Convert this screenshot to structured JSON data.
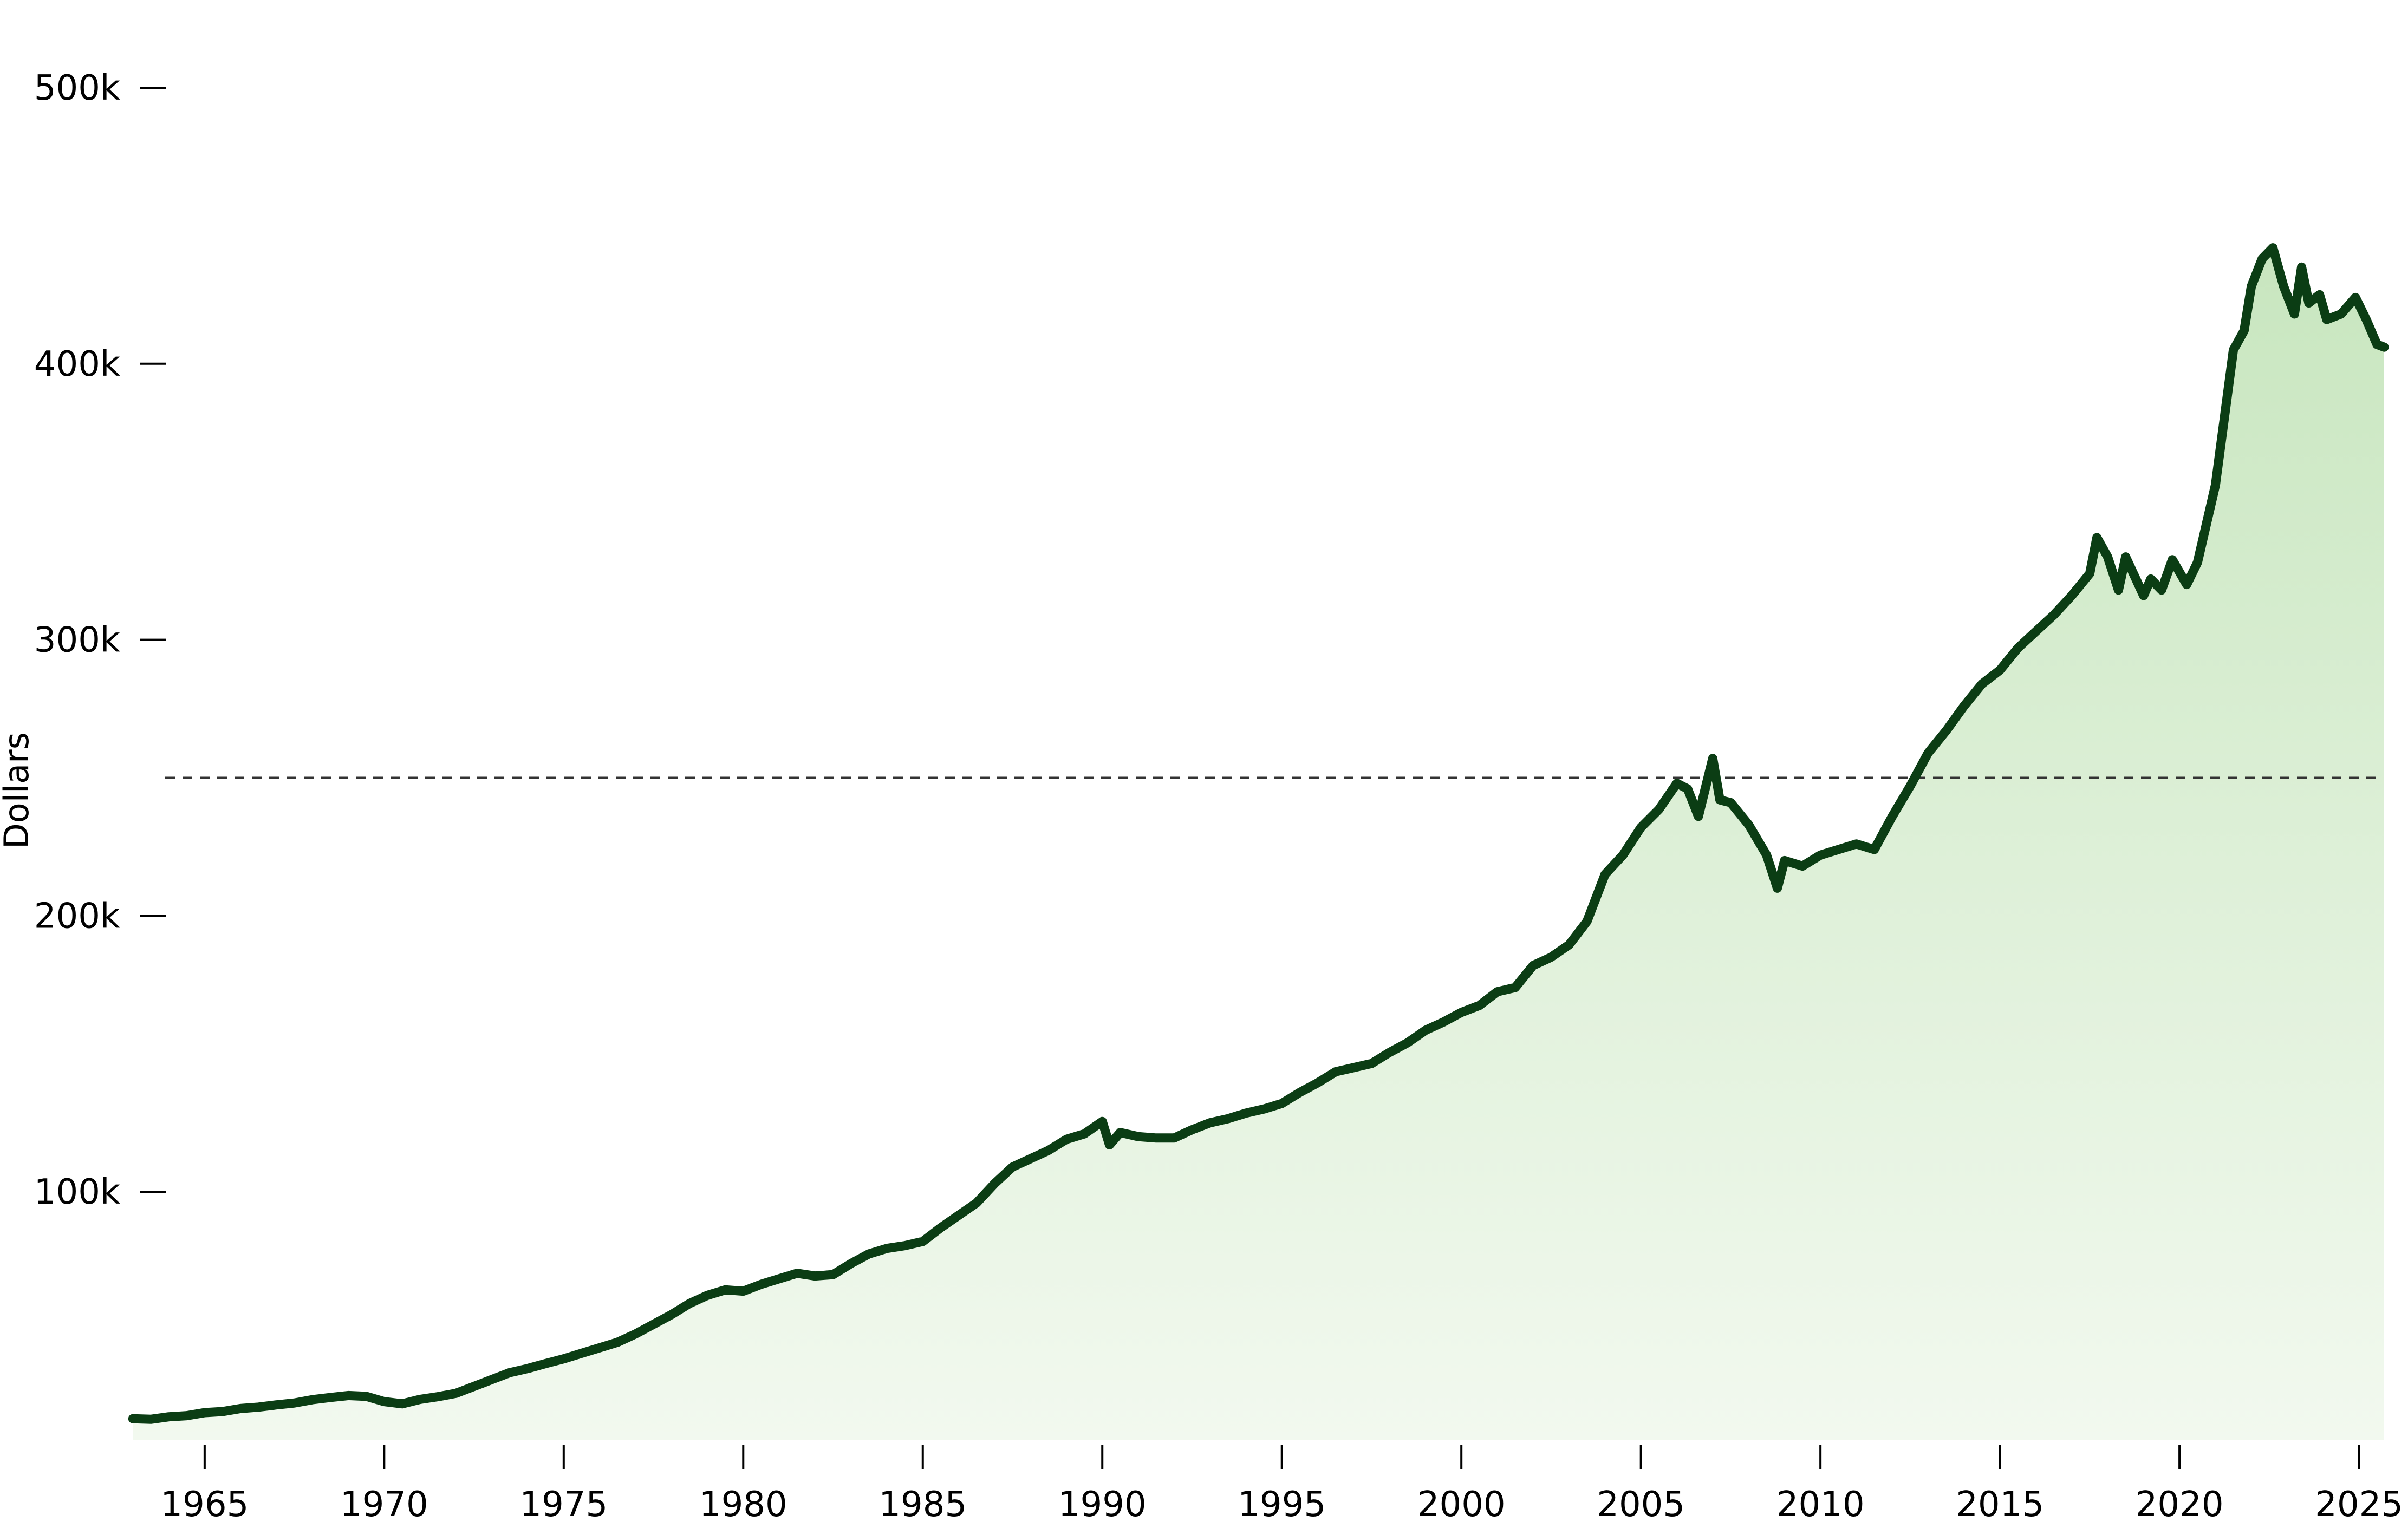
{
  "chart_data": {
    "type": "area",
    "title": "",
    "xlabel": "",
    "ylabel": "Dollars",
    "xlim": [
      1962.8,
      2025.7
    ],
    "ylim": [
      10000,
      520000
    ],
    "x_ticks": [
      1965,
      1970,
      1975,
      1980,
      1985,
      1990,
      1995,
      2000,
      2005,
      2010,
      2015,
      2020,
      2025
    ],
    "x_tick_labels": [
      "1965",
      "1970",
      "1975",
      "1980",
      "1985",
      "1990",
      "1995",
      "2000",
      "2005",
      "2010",
      "2015",
      "2020",
      "2025"
    ],
    "y_ticks": [
      100000,
      200000,
      300000,
      400000,
      500000
    ],
    "y_tick_labels": [
      "100k",
      "200k",
      "300k",
      "400k",
      "500k"
    ],
    "reference_line": {
      "y": 250000,
      "style": "dashed"
    },
    "grid": false,
    "colors": {
      "line": "#0b3d14",
      "fill_top": "#c8e6bf",
      "fill_bottom": "#f2f9ef",
      "reference": "#333333"
    },
    "series": [
      {
        "points": [
          [
            1963.0,
            17800
          ],
          [
            1963.5,
            17600
          ],
          [
            1964.0,
            18500
          ],
          [
            1964.5,
            18900
          ],
          [
            1965.0,
            20000
          ],
          [
            1965.5,
            20400
          ],
          [
            1966.0,
            21500
          ],
          [
            1966.5,
            22000
          ],
          [
            1967.0,
            22800
          ],
          [
            1967.5,
            23500
          ],
          [
            1968.0,
            24700
          ],
          [
            1968.5,
            25500
          ],
          [
            1969.0,
            26200
          ],
          [
            1969.5,
            25900
          ],
          [
            1970.0,
            24000
          ],
          [
            1970.5,
            23200
          ],
          [
            1971.0,
            24800
          ],
          [
            1971.5,
            25800
          ],
          [
            1972.0,
            27000
          ],
          [
            1972.5,
            29500
          ],
          [
            1973.0,
            32000
          ],
          [
            1973.5,
            34500
          ],
          [
            1974.0,
            36000
          ],
          [
            1974.5,
            37800
          ],
          [
            1975.0,
            39500
          ],
          [
            1975.5,
            41500
          ],
          [
            1976.0,
            43500
          ],
          [
            1976.5,
            45500
          ],
          [
            1977.0,
            48500
          ],
          [
            1977.5,
            52000
          ],
          [
            1978.0,
            55500
          ],
          [
            1978.5,
            59500
          ],
          [
            1979.0,
            62500
          ],
          [
            1979.5,
            64500
          ],
          [
            1980.0,
            64000
          ],
          [
            1980.5,
            66500
          ],
          [
            1981.0,
            68500
          ],
          [
            1981.5,
            70500
          ],
          [
            1982.0,
            69500
          ],
          [
            1982.5,
            70000
          ],
          [
            1983.0,
            74000
          ],
          [
            1983.5,
            77500
          ],
          [
            1984.0,
            79500
          ],
          [
            1984.5,
            80500
          ],
          [
            1985.0,
            82000
          ],
          [
            1985.5,
            87000
          ],
          [
            1986.0,
            91500
          ],
          [
            1986.5,
            96000
          ],
          [
            1987.0,
            103000
          ],
          [
            1987.5,
            109000
          ],
          [
            1988.0,
            112000
          ],
          [
            1988.5,
            115000
          ],
          [
            1989.0,
            119000
          ],
          [
            1989.5,
            121000
          ],
          [
            1990.0,
            125500
          ],
          [
            1990.2,
            117000
          ],
          [
            1990.5,
            121500
          ],
          [
            1991.0,
            120000
          ],
          [
            1991.5,
            119500
          ],
          [
            1992.0,
            119500
          ],
          [
            1992.5,
            122500
          ],
          [
            1993.0,
            125000
          ],
          [
            1993.5,
            126500
          ],
          [
            1994.0,
            128500
          ],
          [
            1994.5,
            130000
          ],
          [
            1995.0,
            132000
          ],
          [
            1995.5,
            136000
          ],
          [
            1996.0,
            139500
          ],
          [
            1996.5,
            143500
          ],
          [
            1997.0,
            145000
          ],
          [
            1997.5,
            146500
          ],
          [
            1998.0,
            150500
          ],
          [
            1998.5,
            154000
          ],
          [
            1999.0,
            158500
          ],
          [
            1999.5,
            161500
          ],
          [
            2000.0,
            165000
          ],
          [
            2000.5,
            167500
          ],
          [
            2001.0,
            172500
          ],
          [
            2001.5,
            174000
          ],
          [
            2002.0,
            182000
          ],
          [
            2002.5,
            185000
          ],
          [
            2003.0,
            189500
          ],
          [
            2003.5,
            198000
          ],
          [
            2004.0,
            215000
          ],
          [
            2004.5,
            222000
          ],
          [
            2005.0,
            232000
          ],
          [
            2005.5,
            238500
          ],
          [
            2006.0,
            248000
          ],
          [
            2006.3,
            246000
          ],
          [
            2006.6,
            236000
          ],
          [
            2007.0,
            257000
          ],
          [
            2007.2,
            242000
          ],
          [
            2007.5,
            241000
          ],
          [
            2008.0,
            233000
          ],
          [
            2008.5,
            222000
          ],
          [
            2008.8,
            210000
          ],
          [
            2009.0,
            220000
          ],
          [
            2009.5,
            218000
          ],
          [
            2010.0,
            222000
          ],
          [
            2010.5,
            224000
          ],
          [
            2011.0,
            226000
          ],
          [
            2011.5,
            224000
          ],
          [
            2012.0,
            236000
          ],
          [
            2012.5,
            247000
          ],
          [
            2013.0,
            259000
          ],
          [
            2013.5,
            267000
          ],
          [
            2014.0,
            276000
          ],
          [
            2014.5,
            284000
          ],
          [
            2015.0,
            289000
          ],
          [
            2015.5,
            297000
          ],
          [
            2016.0,
            303000
          ],
          [
            2016.5,
            309000
          ],
          [
            2017.0,
            316000
          ],
          [
            2017.5,
            324000
          ],
          [
            2017.7,
            337000
          ],
          [
            2018.0,
            330000
          ],
          [
            2018.3,
            318000
          ],
          [
            2018.5,
            330000
          ],
          [
            2019.0,
            316000
          ],
          [
            2019.2,
            322000
          ],
          [
            2019.5,
            318000
          ],
          [
            2019.8,
            329000
          ],
          [
            2020.2,
            320000
          ],
          [
            2020.5,
            328000
          ],
          [
            2021.0,
            356000
          ],
          [
            2021.5,
            405000
          ],
          [
            2021.8,
            412000
          ],
          [
            2022.0,
            428000
          ],
          [
            2022.3,
            438000
          ],
          [
            2022.6,
            442000
          ],
          [
            2022.9,
            428000
          ],
          [
            2023.2,
            418000
          ],
          [
            2023.4,
            435000
          ],
          [
            2023.6,
            422000
          ],
          [
            2023.9,
            425000
          ],
          [
            2024.1,
            416000
          ],
          [
            2024.5,
            418000
          ],
          [
            2024.9,
            424000
          ],
          [
            2025.2,
            416000
          ],
          [
            2025.5,
            407000
          ],
          [
            2025.7,
            406000
          ]
        ]
      }
    ]
  }
}
